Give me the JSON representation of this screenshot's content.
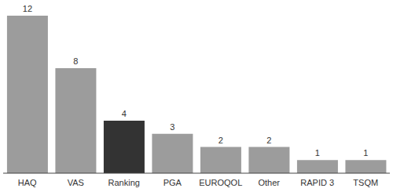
{
  "chart_data": {
    "type": "bar",
    "categories": [
      "HAQ",
      "VAS",
      "Ranking",
      "PGA",
      "EUROQOL",
      "Other",
      "RAPID 3",
      "TSQM"
    ],
    "values": [
      12,
      8,
      4,
      3,
      2,
      2,
      1,
      1
    ],
    "colors": [
      "#9c9c9c",
      "#9c9c9c",
      "#333333",
      "#9c9c9c",
      "#9c9c9c",
      "#9c9c9c",
      "#9c9c9c",
      "#9c9c9c"
    ],
    "data_labels": true,
    "tick_labels": "x",
    "grid": false
  }
}
